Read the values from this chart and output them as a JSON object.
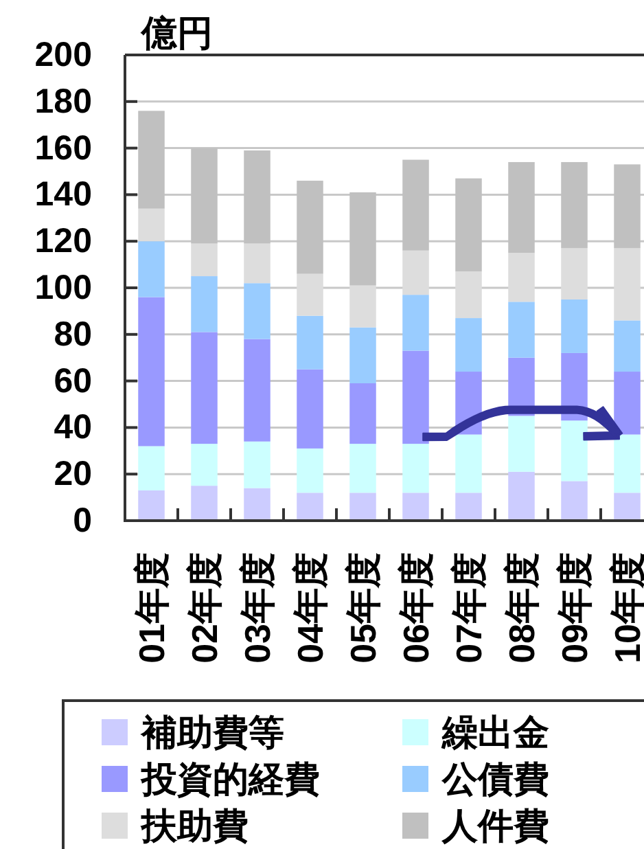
{
  "chart_data": {
    "type": "bar",
    "stacked": true,
    "ylabel": "億円",
    "categories": [
      "01年度",
      "02年度",
      "03年度",
      "04年度",
      "05年度",
      "06年度",
      "07年度",
      "08年度",
      "09年度",
      "10年度"
    ],
    "series": [
      {
        "name": "補助費等",
        "color": "#ccccff",
        "values": [
          13,
          15,
          14,
          12,
          12,
          12,
          12,
          21,
          17,
          12
        ]
      },
      {
        "name": "繰出金",
        "color": "#ccffff",
        "values": [
          19,
          18,
          20,
          19,
          21,
          21,
          25,
          24,
          26,
          25
        ]
      },
      {
        "name": "投資的経費",
        "color": "#9999ff",
        "values": [
          64,
          48,
          44,
          34,
          26,
          40,
          27,
          25,
          29,
          27
        ]
      },
      {
        "name": "公債費",
        "color": "#99ccff",
        "values": [
          24,
          24,
          24,
          23,
          24,
          24,
          23,
          24,
          23,
          22
        ]
      },
      {
        "name": "扶助費",
        "color": "#dddddd",
        "values": [
          14,
          14,
          17,
          18,
          18,
          19,
          20,
          21,
          22,
          31
        ]
      },
      {
        "name": "人件費",
        "color": "#c0c0c0",
        "values": [
          42,
          41,
          40,
          40,
          40,
          39,
          40,
          39,
          37,
          36
        ]
      }
    ],
    "ylim": [
      0,
      200
    ],
    "yticks": [
      0,
      20,
      40,
      60,
      80,
      100,
      120,
      140,
      160,
      180,
      200
    ],
    "grid": "y",
    "legend": "bottom"
  }
}
